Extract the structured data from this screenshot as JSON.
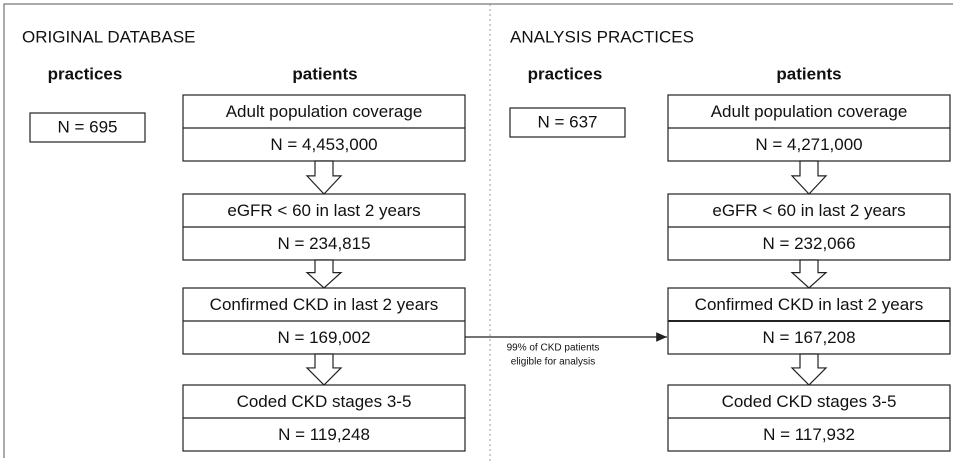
{
  "left": {
    "title": "ORIGINAL DATABASE",
    "practices_header": "practices",
    "patients_header": "patients",
    "practices": "N = 695",
    "steps": [
      {
        "label": "Adult population coverage",
        "value": "N = 4,453,000"
      },
      {
        "label": "eGFR < 60 in last 2 years",
        "value": "N = 234,815"
      },
      {
        "label": "Confirmed CKD in last 2 years",
        "value": "N = 169,002"
      },
      {
        "label": "Coded CKD stages 3-5",
        "value": "N = 119,248"
      }
    ]
  },
  "right": {
    "title": "ANALYSIS PRACTICES",
    "practices_header": "practices",
    "patients_header": "patients",
    "practices": "N = 637",
    "steps": [
      {
        "label": "Adult population coverage",
        "value": "N = 4,271,000"
      },
      {
        "label": "eGFR < 60 in last 2 years",
        "value": "N = 232,066"
      },
      {
        "label": "Confirmed CKD in last 2 years",
        "value": "N = 167,208"
      },
      {
        "label": "Coded CKD stages 3-5",
        "value": "N = 117,932"
      }
    ]
  },
  "connector": {
    "lines": [
      "99% of CKD patients",
      "eligible for analysis"
    ]
  }
}
